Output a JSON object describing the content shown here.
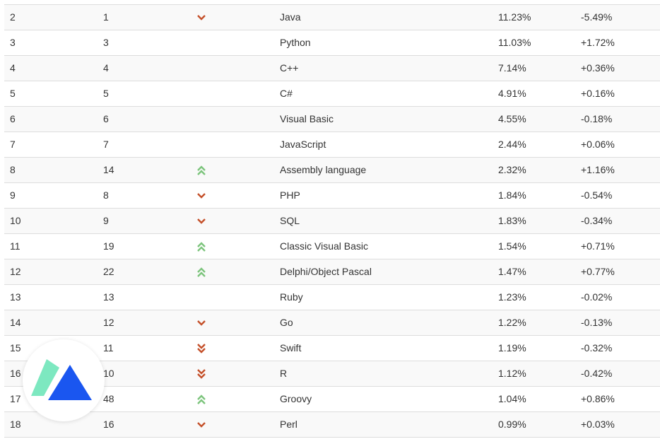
{
  "table": {
    "rows": [
      [
        "2",
        "1",
        "Java",
        "11.23%",
        "-5.49%"
      ],
      [
        "3",
        "3",
        "Python",
        "11.03%",
        "+1.72%"
      ],
      [
        "4",
        "4",
        "C++",
        "7.14%",
        "+0.36%"
      ],
      [
        "5",
        "5",
        "C#",
        "4.91%",
        "+0.16%"
      ],
      [
        "6",
        "6",
        "Visual Basic",
        "4.55%",
        "-0.18%"
      ],
      [
        "7",
        "7",
        "JavaScript",
        "2.44%",
        "+0.06%"
      ],
      [
        "8",
        "14",
        "Assembly language",
        "2.32%",
        "+1.16%"
      ],
      [
        "9",
        "8",
        "PHP",
        "1.84%",
        "-0.54%"
      ],
      [
        "10",
        "9",
        "SQL",
        "1.83%",
        "-0.34%"
      ],
      [
        "11",
        "19",
        "Classic Visual Basic",
        "1.54%",
        "+0.71%"
      ],
      [
        "12",
        "22",
        "Delphi/Object Pascal",
        "1.47%",
        "+0.77%"
      ],
      [
        "13",
        "13",
        "Ruby",
        "1.23%",
        "-0.02%"
      ],
      [
        "14",
        "12",
        "Go",
        "1.22%",
        "-0.13%"
      ],
      [
        "15",
        "11",
        "Swift",
        "1.19%",
        "-0.32%"
      ],
      [
        "16",
        "10",
        "R",
        "1.12%",
        "-0.42%"
      ],
      [
        "17",
        "48",
        "Groovy",
        "1.04%",
        "+0.86%"
      ],
      [
        "18",
        "16",
        "Perl",
        "0.99%",
        "+0.03%"
      ]
    ]
  }
}
